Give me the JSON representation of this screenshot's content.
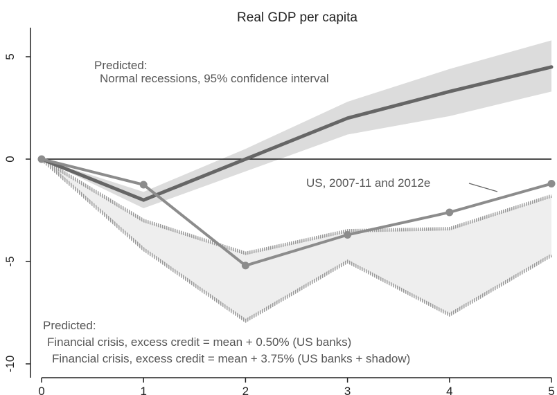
{
  "chart_data": {
    "type": "line",
    "title": "Real GDP per capita",
    "xlabel": "",
    "ylabel": "",
    "x": [
      0,
      1,
      2,
      3,
      4,
      5
    ],
    "xlim": [
      0,
      5
    ],
    "ylim": [
      -10,
      6.5
    ],
    "xticks": [
      "0",
      "1",
      "2",
      "3",
      "4",
      "5"
    ],
    "yticks": [
      {
        "value": 5,
        "label": "5"
      },
      {
        "value": 0,
        "label": "0"
      },
      {
        "value": -5,
        "label": "-5"
      },
      {
        "value": -10,
        "label": "-10"
      }
    ],
    "grid": false,
    "legend": "none",
    "series": [
      {
        "values": [
          0,
          -2.0,
          0,
          2.0,
          3.3,
          4.5
        ]
      },
      {
        "values": [
          0,
          -1.25,
          -5.2,
          -3.7,
          -2.6,
          -1.2
        ]
      }
    ],
    "bands": [
      {
        "lower": [
          0,
          -2.4,
          -0.6,
          1.2,
          2.1,
          3.3
        ],
        "upper": [
          0,
          -1.6,
          0.5,
          2.8,
          4.4,
          5.8
        ]
      },
      {
        "lower": [
          0,
          -4.4,
          -7.9,
          -5.0,
          -7.6,
          -4.7
        ],
        "upper": [
          0,
          -3.0,
          -4.6,
          -3.5,
          -3.4,
          -1.8
        ]
      }
    ],
    "annotations": [
      {
        "line1": "Predicted:",
        "line2": "Normal recessions, 95% confidence interval"
      },
      {
        "text": "US, 2007-11 and 2012e"
      },
      {
        "line1": "Predicted:",
        "line2": "Financial crisis, excess credit = mean + 0.50% (US banks)",
        "line3": "Financial crisis, excess credit = mean + 3.75% (US banks + shadow)"
      }
    ],
    "colors": {
      "normal_band": "#dcdcdc",
      "normal_line": "#666666",
      "crisis_band": "#eeeeee",
      "crisis_edge": "#aaaaaa",
      "us_line": "#8c8c8c",
      "zero_line": "#111111",
      "axis": "#222222"
    }
  }
}
